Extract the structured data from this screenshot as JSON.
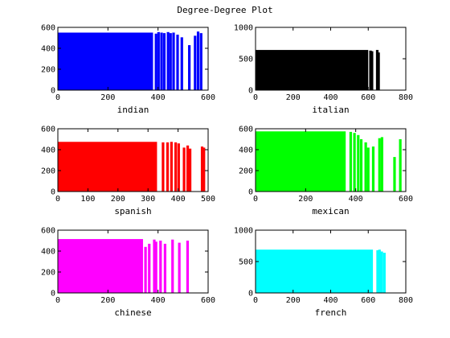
{
  "figure": {
    "title": "Degree-Degree Plot"
  },
  "chart_data": [
    {
      "type": "scatter",
      "title": "",
      "xlabel": "indian",
      "ylabel": "",
      "xlim": [
        0,
        600
      ],
      "ylim": [
        0,
        600
      ],
      "xticks": [
        0,
        200,
        400,
        600
      ],
      "yticks": [
        0,
        200,
        400,
        600
      ],
      "color": "#0000ff",
      "marker": "diamond",
      "grid": false,
      "legend": "none",
      "series": [
        {
          "x_range": [
            1,
            575
          ],
          "y_range": [
            1,
            570
          ],
          "dense_region": {
            "x": [
              1,
              380
            ],
            "y": [
              1,
              550
            ]
          },
          "strips": [
            {
              "x": 392,
              "y_max": 540
            },
            {
              "x": 402,
              "y_max": 555
            },
            {
              "x": 414,
              "y_max": 550
            },
            {
              "x": 425,
              "y_max": 545
            },
            {
              "x": 440,
              "y_max": 555
            },
            {
              "x": 450,
              "y_max": 545
            },
            {
              "x": 462,
              "y_max": 550
            },
            {
              "x": 478,
              "y_max": 530
            },
            {
              "x": 495,
              "y_max": 505
            },
            {
              "x": 525,
              "y_max": 430
            },
            {
              "x": 548,
              "y_max": 520
            },
            {
              "x": 560,
              "y_max": 560
            },
            {
              "x": 572,
              "y_max": 545
            }
          ]
        }
      ]
    },
    {
      "type": "scatter",
      "title": "",
      "xlabel": "italian",
      "ylabel": "",
      "xlim": [
        0,
        800
      ],
      "ylim": [
        0,
        1000
      ],
      "xticks": [
        0,
        200,
        400,
        600,
        800
      ],
      "yticks": [
        0,
        500,
        1000
      ],
      "color": "#000000",
      "marker": "diamond",
      "grid": false,
      "legend": "none",
      "series": [
        {
          "x_range": [
            1,
            655
          ],
          "y_range": [
            1,
            650
          ],
          "dense_region": {
            "x": [
              1,
              600
            ],
            "y": [
              1,
              640
            ]
          },
          "strips": [
            {
              "x": 612,
              "y_max": 630
            },
            {
              "x": 620,
              "y_max": 620
            },
            {
              "x": 648,
              "y_max": 640
            },
            {
              "x": 655,
              "y_max": 600
            }
          ]
        }
      ]
    },
    {
      "type": "scatter",
      "title": "",
      "xlabel": "spanish",
      "ylabel": "",
      "xlim": [
        0,
        500
      ],
      "ylim": [
        0,
        600
      ],
      "xticks": [
        0,
        100,
        200,
        300,
        400,
        500
      ],
      "yticks": [
        0,
        200,
        400,
        600
      ],
      "color": "#ff0000",
      "marker": "diamond",
      "grid": false,
      "legend": "none",
      "series": [
        {
          "x_range": [
            1,
            487
          ],
          "y_range": [
            1,
            485
          ],
          "dense_region": {
            "x": [
              1,
              330
            ],
            "y": [
              1,
              475
            ]
          },
          "strips": [
            {
              "x": 350,
              "y_max": 470
            },
            {
              "x": 365,
              "y_max": 470
            },
            {
              "x": 378,
              "y_max": 475
            },
            {
              "x": 392,
              "y_max": 470
            },
            {
              "x": 402,
              "y_max": 460
            },
            {
              "x": 420,
              "y_max": 420
            },
            {
              "x": 432,
              "y_max": 440
            },
            {
              "x": 440,
              "y_max": 410
            },
            {
              "x": 480,
              "y_max": 430
            },
            {
              "x": 486,
              "y_max": 420
            }
          ]
        }
      ]
    },
    {
      "type": "scatter",
      "title": "",
      "xlabel": "mexican",
      "ylabel": "",
      "xlim": [
        0,
        600
      ],
      "ylim": [
        0,
        600
      ],
      "xticks": [
        0,
        200,
        400,
        600
      ],
      "yticks": [
        0,
        200,
        400,
        600
      ],
      "color": "#00ff00",
      "marker": "diamond",
      "grid": false,
      "legend": "none",
      "series": [
        {
          "x_range": [
            1,
            580
          ],
          "y_range": [
            1,
            580
          ],
          "dense_region": {
            "x": [
              1,
              360
            ],
            "y": [
              1,
              575
            ]
          },
          "strips": [
            {
              "x": 380,
              "y_max": 570
            },
            {
              "x": 395,
              "y_max": 560
            },
            {
              "x": 410,
              "y_max": 540
            },
            {
              "x": 422,
              "y_max": 500
            },
            {
              "x": 440,
              "y_max": 470
            },
            {
              "x": 450,
              "y_max": 420
            },
            {
              "x": 470,
              "y_max": 430
            },
            {
              "x": 495,
              "y_max": 510
            },
            {
              "x": 505,
              "y_max": 520
            },
            {
              "x": 555,
              "y_max": 330
            },
            {
              "x": 578,
              "y_max": 500
            }
          ]
        }
      ]
    },
    {
      "type": "scatter",
      "title": "",
      "xlabel": "chinese",
      "ylabel": "",
      "xlim": [
        0,
        600
      ],
      "ylim": [
        0,
        600
      ],
      "xticks": [
        0,
        200,
        400,
        600
      ],
      "yticks": [
        0,
        200,
        400,
        600
      ],
      "color": "#ff00ff",
      "marker": "diamond",
      "grid": false,
      "legend": "none",
      "series": [
        {
          "x_range": [
            1,
            520
          ],
          "y_range": [
            1,
            520
          ],
          "dense_region": {
            "x": [
              1,
              340
            ],
            "y": [
              1,
              515
            ]
          },
          "strips": [
            {
              "x": 350,
              "y_max": 440
            },
            {
              "x": 365,
              "y_max": 470
            },
            {
              "x": 385,
              "y_max": 510
            },
            {
              "x": 392,
              "y_max": 490
            },
            {
              "x": 410,
              "y_max": 500
            },
            {
              "x": 428,
              "y_max": 470
            },
            {
              "x": 458,
              "y_max": 510
            },
            {
              "x": 485,
              "y_max": 480
            },
            {
              "x": 518,
              "y_max": 500
            }
          ]
        }
      ]
    },
    {
      "type": "scatter",
      "title": "",
      "xlabel": "french",
      "ylabel": "",
      "xlim": [
        0,
        800
      ],
      "ylim": [
        0,
        1000
      ],
      "xticks": [
        0,
        200,
        400,
        600,
        800
      ],
      "yticks": [
        0,
        500,
        1000
      ],
      "color": "#00ffff",
      "marker": "diamond",
      "grid": false,
      "legend": "none",
      "series": [
        {
          "x_range": [
            1,
            690
          ],
          "y_range": [
            1,
            700
          ],
          "dense_region": {
            "x": [
              1,
              625
            ],
            "y": [
              1,
              690
            ]
          },
          "strips": [
            {
              "x": 650,
              "y_max": 680
            },
            {
              "x": 660,
              "y_max": 690
            },
            {
              "x": 672,
              "y_max": 660
            },
            {
              "x": 686,
              "y_max": 640
            }
          ]
        }
      ]
    }
  ]
}
